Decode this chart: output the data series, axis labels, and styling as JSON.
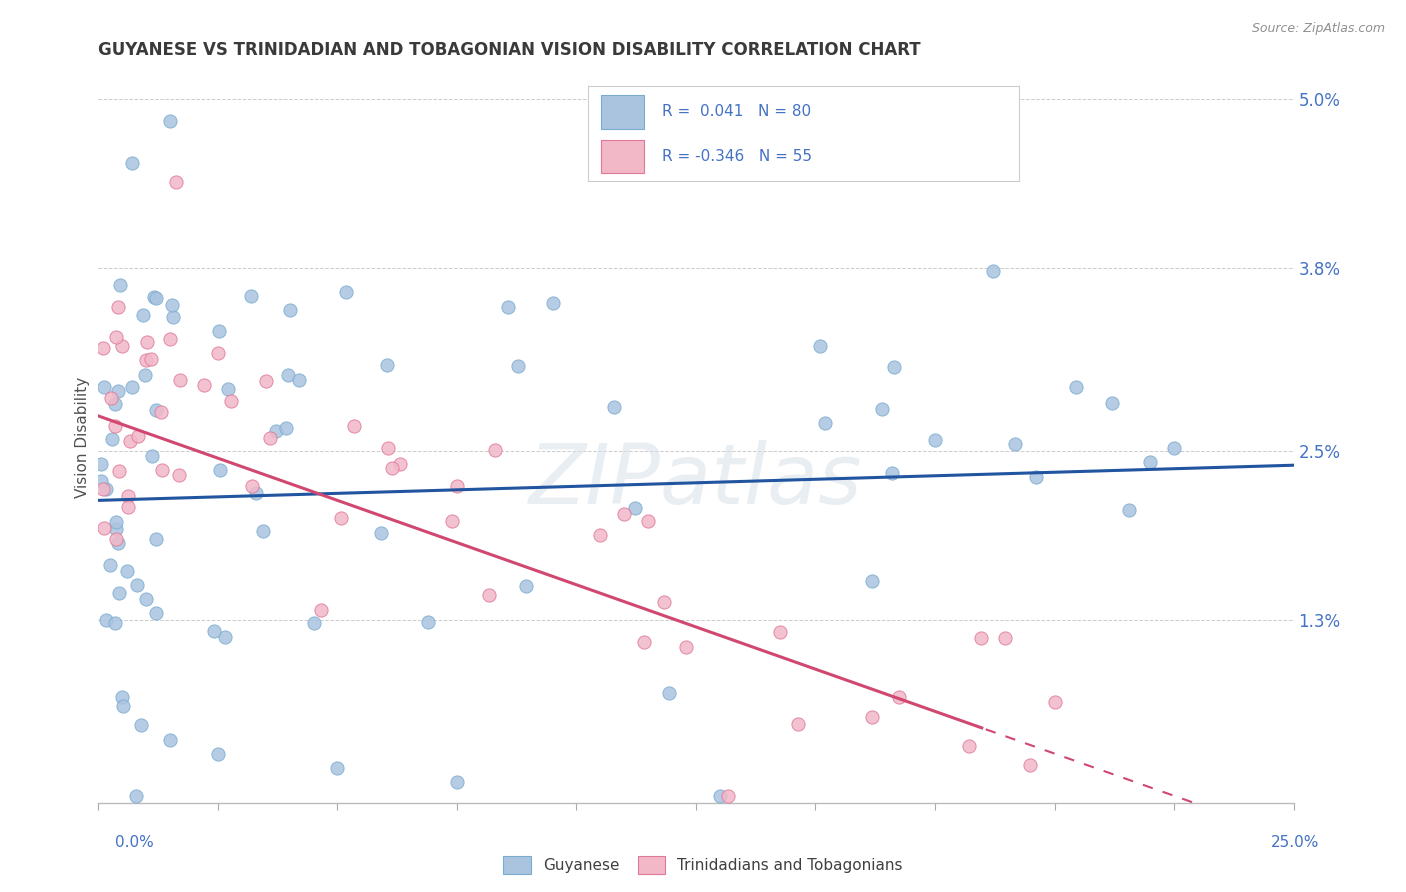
{
  "title": "GUYANESE VS TRINIDADIAN AND TOBAGONIAN VISION DISABILITY CORRELATION CHART",
  "source": "Source: ZipAtlas.com",
  "ylabel": "Vision Disability",
  "ytick_values": [
    0.0,
    1.3,
    2.5,
    3.8,
    5.0
  ],
  "ytick_labels": [
    "",
    "1.3%",
    "2.5%",
    "3.8%",
    "5.0%"
  ],
  "xmin": 0.0,
  "xmax": 25.0,
  "ymin": 0.0,
  "ymax": 5.2,
  "blue_fill": "#aac4e0",
  "blue_edge": "#7aacd0",
  "pink_fill": "#f2b8c8",
  "pink_edge": "#e07898",
  "blue_line": "#2255a0",
  "pink_line": "#d04870",
  "title_color": "#3a3a3a",
  "source_color": "#909090",
  "axis_tick_color": "#4472c4",
  "legend_r1": "R =  0.041   N = 80",
  "legend_r2": "R = -0.346   N = 55",
  "watermark": "ZIPatlas",
  "watermark_color": "#d8e0ea",
  "N_blue": 80,
  "N_pink": 55,
  "blue_slope": 0.01,
  "blue_intercept": 2.15,
  "pink_slope": -0.12,
  "pink_intercept": 2.75
}
